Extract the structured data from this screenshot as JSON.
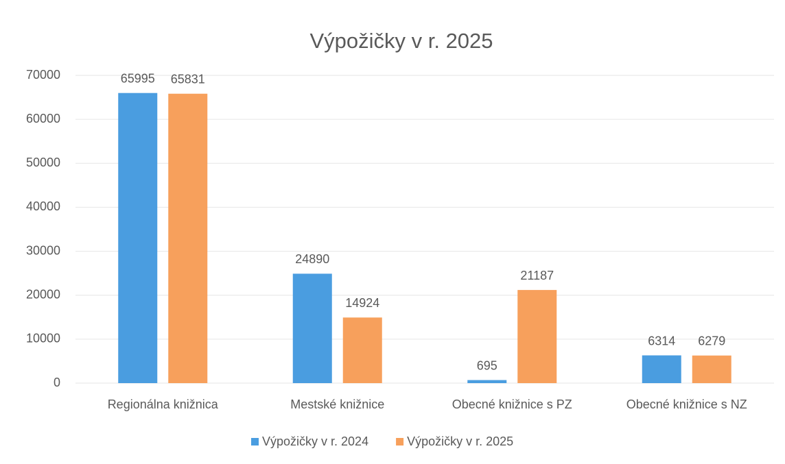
{
  "chart_data": {
    "type": "bar",
    "title": "Výpožičky v r. 2025",
    "categories": [
      "Regionálna knižnica",
      "Mestské knižnice",
      "Obecné knižnice s PZ",
      "Obecné knižnice s NZ"
    ],
    "series": [
      {
        "name": "Výpožičky v r. 2024",
        "color": "#4a9de0",
        "values": [
          65995,
          24890,
          695,
          6314
        ]
      },
      {
        "name": "Výpožičky v r. 2025",
        "color": "#f7a05c",
        "values": [
          65831,
          14924,
          21187,
          6279
        ]
      }
    ],
    "ylim": [
      0,
      70000
    ],
    "yticks": [
      0,
      10000,
      20000,
      30000,
      40000,
      50000,
      60000,
      70000
    ],
    "grid": true,
    "legend": "bottom"
  }
}
